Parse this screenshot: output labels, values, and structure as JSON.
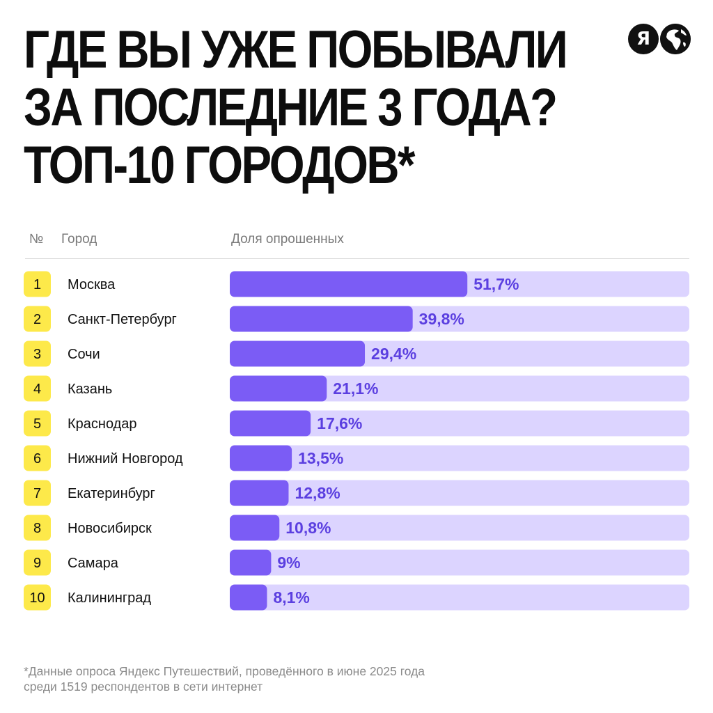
{
  "title_lines": [
    "ГДЕ ВЫ УЖЕ ПОБЫВАЛИ",
    "ЗА ПОСЛЕДНИЕ 3 ГОДА?",
    "ТОП-10 ГОРОДОВ*"
  ],
  "logos": {
    "ya_letter": "Я",
    "icons": [
      "yandex-logo-icon",
      "globe-icon"
    ]
  },
  "columns": {
    "rank": "№",
    "city": "Город",
    "share": "Доля опрошенных"
  },
  "footnote_lines": [
    "*Данные опроса Яндекс Путешествий, проведённого в июне 2025 года",
    "среди 1519 респондентов в сети интернет"
  ],
  "colors": {
    "rank_badge": "#fde94a",
    "bar": "#7b5cf5",
    "track": "#dcd4ff",
    "value_text": "#5b3fe0"
  },
  "chart_data": {
    "type": "bar",
    "orientation": "horizontal",
    "ranks": [
      "1",
      "2",
      "3",
      "4",
      "5",
      "6",
      "7",
      "8",
      "9",
      "10"
    ],
    "categories": [
      "Москва",
      "Санкт-Петербург",
      "Сочи",
      "Казань",
      "Краснодар",
      "Нижний Новгород",
      "Екатеринбург",
      "Новосибирск",
      "Самара",
      "Калининград"
    ],
    "values": [
      51.7,
      39.8,
      29.4,
      21.1,
      17.6,
      13.5,
      12.8,
      10.8,
      9,
      8.1
    ],
    "value_labels": [
      "51,7%",
      "39,8%",
      "29,4%",
      "21,1%",
      "17,6%",
      "13,5%",
      "12,8%",
      "10,8%",
      "9%",
      "8,1%"
    ],
    "xlim": [
      0,
      100
    ],
    "grid": false,
    "legend": "none"
  }
}
